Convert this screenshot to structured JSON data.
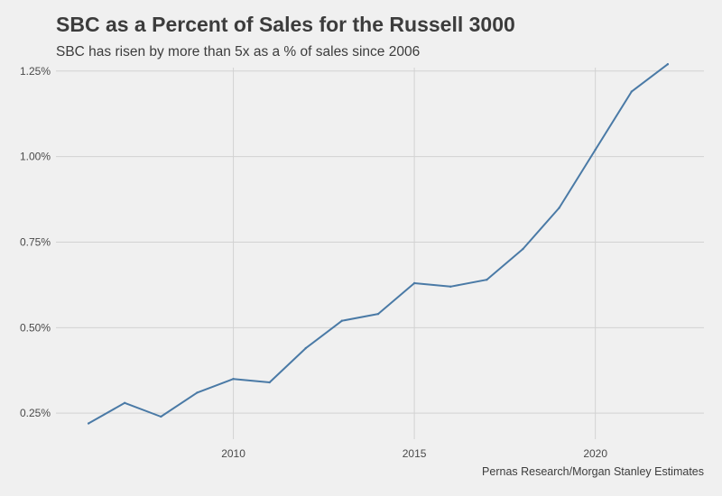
{
  "chart_data": {
    "type": "line",
    "title": "SBC as a Percent of Sales for the Russell 3000",
    "subtitle": "SBC has risen by more than 5x as a % of sales since 2006",
    "caption": "Pernas Research/Morgan Stanley Estimates",
    "xlabel": "",
    "ylabel": "",
    "xlim": [
      2005.1,
      2023
    ],
    "ylim": [
      0.174,
      1.26
    ],
    "x_ticks": [
      2010,
      2015,
      2020
    ],
    "x_tick_labels": [
      "2010",
      "2015",
      "2020"
    ],
    "y_ticks": [
      0.25,
      0.5,
      0.75,
      1.0,
      1.25
    ],
    "y_tick_labels": [
      "0.25%",
      "0.50%",
      "0.75%",
      "1.00%",
      "1.25%"
    ],
    "grid": true,
    "series": [
      {
        "name": "SBC % of Sales",
        "color": "#4a7aa6",
        "x": [
          2006,
          2007,
          2008,
          2009,
          2010,
          2011,
          2012,
          2013,
          2014,
          2015,
          2016,
          2017,
          2018,
          2019,
          2020,
          2021,
          2022
        ],
        "values": [
          0.22,
          0.28,
          0.24,
          0.31,
          0.35,
          0.34,
          0.44,
          0.52,
          0.54,
          0.63,
          0.62,
          0.64,
          0.73,
          0.85,
          1.02,
          1.19,
          1.27
        ]
      }
    ]
  }
}
